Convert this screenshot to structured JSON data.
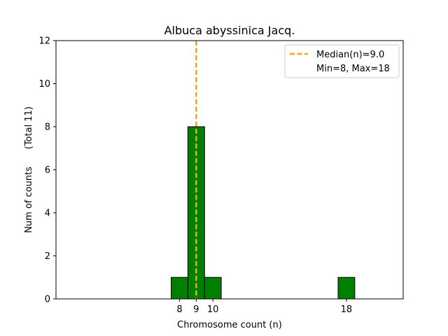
{
  "chart_data": {
    "type": "bar",
    "title": "Albuca abyssinica Jacq.",
    "xlabel": "Chromosome count (n)",
    "ylabel": "Num of counts      (Total 11)",
    "xlim": [
      0.6,
      21.4
    ],
    "ylim": [
      0,
      12
    ],
    "xticks": [
      8,
      9,
      10,
      18
    ],
    "yticks": [
      0,
      2,
      4,
      6,
      8,
      10,
      12
    ],
    "bin_width": 1,
    "bars": [
      {
        "x": 8,
        "count": 1
      },
      {
        "x": 9,
        "count": 8
      },
      {
        "x": 10,
        "count": 1
      },
      {
        "x": 18,
        "count": 1
      }
    ],
    "bar_color": "#008000",
    "bar_edge_color": "#000000",
    "median": {
      "value": 9.0,
      "color": "#ffa500"
    },
    "legend": {
      "position": "top-right",
      "entries": [
        "Median(n)=9.0",
        "Min=8, Max=18"
      ]
    },
    "grid": false
  }
}
